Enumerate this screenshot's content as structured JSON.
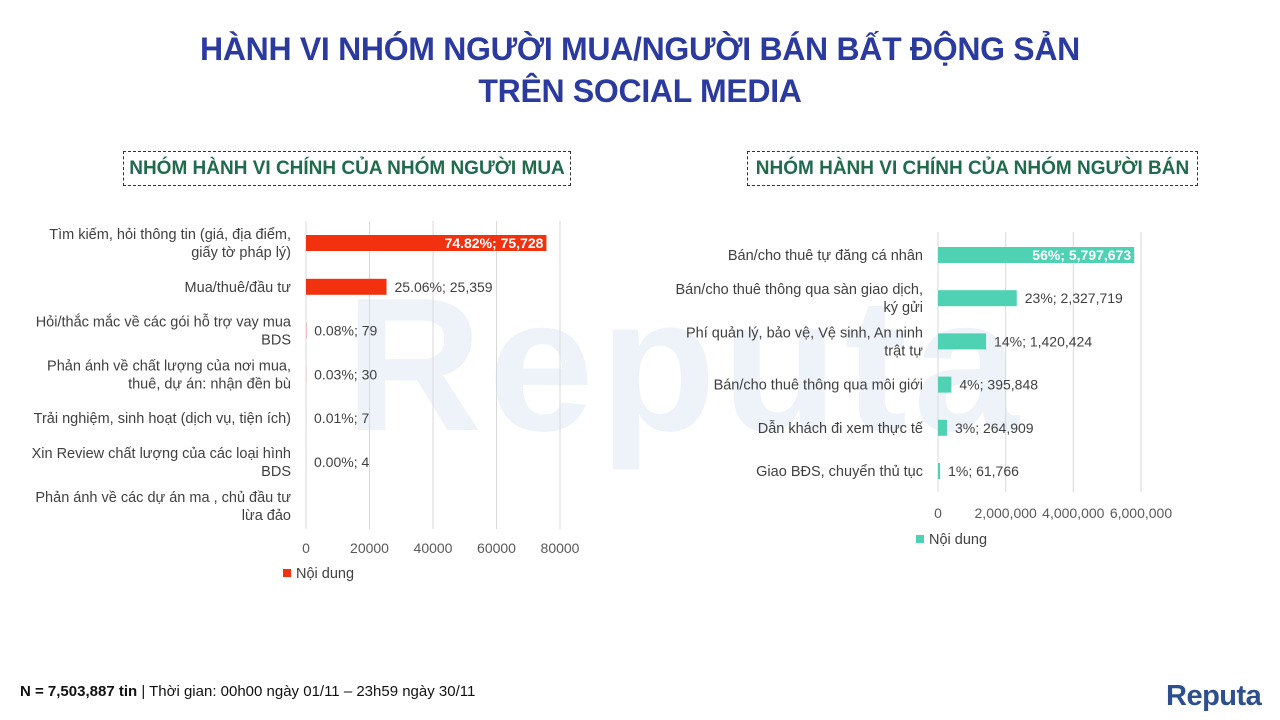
{
  "title": {
    "line1": "HÀNH VI NHÓM NGƯỜI MUA/NGƯỜI BÁN BẤT ĐỘNG SẢN",
    "line2": "TRÊN SOCIAL MEDIA"
  },
  "watermark_text": "Reputa",
  "footer": {
    "n_label": "N = 7,503,887 tin",
    "time_text": " | Thời gian: 00h00 ngày 01/11 – 23h59 ngày 30/11"
  },
  "logo_text": "Reputa",
  "colors": {
    "buyer_bar": "#f2320f",
    "seller_bar": "#4fd1b4",
    "title": "#2b3a9f",
    "box_title": "#1f6b4c"
  },
  "chart_data": [
    {
      "type": "bar",
      "orientation": "horizontal",
      "title": "NHÓM HÀNH VI CHÍNH CỦA NHÓM NGƯỜI MUA",
      "categories": [
        [
          "Tìm kiếm, hỏi thông tin (giá, địa điểm,",
          "giấy tờ pháp lý)"
        ],
        [
          "Mua/thuê/đầu tư"
        ],
        [
          "Hỏi/thắc mắc về các gói hỗ trợ vay mua",
          "BDS"
        ],
        [
          "Phản ánh về chất lượng của nơi mua,",
          "thuê, dự án: nhận đền bù"
        ],
        [
          "Trải nghiệm, sinh hoạt (dịch vụ, tiện ích)"
        ],
        [
          "Xin Review chất lượng của các loại hình",
          "BDS"
        ],
        [
          "Phản ánh về các dự án ma , chủ đầu tư",
          "lừa đảo"
        ]
      ],
      "values": [
        75728,
        25359,
        79,
        30,
        7,
        4,
        0
      ],
      "data_labels": [
        "74.82%; 75,728",
        "25.06%; 25,359",
        "0.08%; 79",
        "0.03%; 30",
        "0.01%; 7",
        "0.00%; 4",
        ""
      ],
      "xlim": [
        0,
        80000
      ],
      "x_ticks": [
        "0",
        "20000",
        "40000",
        "60000",
        "80000"
      ],
      "legend": "Nội dung",
      "legend_position": "bottom",
      "grid": true
    },
    {
      "type": "bar",
      "orientation": "horizontal",
      "title": "NHÓM HÀNH VI CHÍNH CỦA NHÓM NGƯỜI BÁN",
      "categories": [
        [
          "Bán/cho thuê tự đăng cá nhân"
        ],
        [
          "Bán/cho thuê thông qua sàn giao dịch,",
          "ký gửi"
        ],
        [
          "Phí quản lý, bảo vệ, Vệ sinh, An ninh",
          "trật tự"
        ],
        [
          "Bán/cho thuê thông qua môi giới"
        ],
        [
          "Dẫn khách đi xem thực tế"
        ],
        [
          "Giao BĐS, chuyển thủ tục"
        ]
      ],
      "values": [
        5797673,
        2327719,
        1420424,
        395848,
        264909,
        61766
      ],
      "data_labels": [
        "56%; 5,797,673",
        "23%; 2,327,719",
        "14%; 1,420,424",
        "4%; 395,848",
        "3%; 264,909",
        "1%; 61,766"
      ],
      "xlim": [
        0,
        6000000
      ],
      "x_ticks": [
        "0",
        "2,000,000",
        "4,000,000",
        "6,000,000"
      ],
      "legend": "Nội dung",
      "legend_position": "bottom",
      "grid": true
    }
  ]
}
